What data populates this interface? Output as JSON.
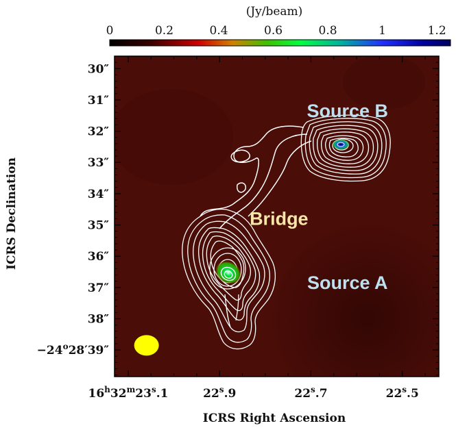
{
  "chart_data": {
    "type": "heatmap",
    "colorbar": {
      "label": "(Jy/beam)",
      "ticks": [
        0,
        0.2,
        0.4,
        0.6,
        0.8,
        1,
        1.2
      ],
      "tick_labels": [
        "0",
        "0.2",
        "0.4",
        "0.6",
        "0.8",
        "1",
        "1.2"
      ],
      "range": [
        0,
        1.25
      ],
      "colormap": "black-red-green-blue"
    },
    "xlabel": "ICRS Right Ascension",
    "ylabel": "ICRS Declination",
    "x_ticks": [
      {
        "value": 23.1,
        "label_parts": [
          "16",
          "h",
          "32",
          "m",
          "23",
          "s",
          ".1"
        ]
      },
      {
        "value": 22.9,
        "label_parts": [
          "22",
          "s",
          ".9"
        ]
      },
      {
        "value": 22.7,
        "label_parts": [
          "22",
          "s",
          ".7"
        ]
      },
      {
        "value": 22.5,
        "label_parts": [
          "22",
          "s",
          ".5"
        ]
      }
    ],
    "xlim": [
      23.13,
      22.42
    ],
    "y_ticks": [
      {
        "value": 30,
        "label": "30″"
      },
      {
        "value": 31,
        "label": "31″"
      },
      {
        "value": 32,
        "label": "32″"
      },
      {
        "value": 33,
        "label": "33″"
      },
      {
        "value": 34,
        "label": "34″"
      },
      {
        "value": 35,
        "label": "35″"
      },
      {
        "value": 36,
        "label": "36″"
      },
      {
        "value": 37,
        "label": "37″"
      },
      {
        "value": 38,
        "label": "38″"
      },
      {
        "value": 39,
        "label_parts": [
          "−24",
          "o",
          "28′39″"
        ]
      }
    ],
    "ylim": [
      39.85,
      29.6
    ],
    "annotations": [
      {
        "text": "Source B",
        "x": 22.62,
        "y": 31.35,
        "color": "#bfe0ef"
      },
      {
        "text": "Bridge",
        "x": 22.77,
        "y": 34.8,
        "color": "#f8e6a8"
      },
      {
        "text": "Source A",
        "x": 22.62,
        "y": 36.85,
        "color": "#bfe0ef"
      }
    ],
    "sources": [
      {
        "name": "Source A",
        "x": 22.88,
        "y": 36.6,
        "peak": 0.62
      },
      {
        "name": "Source B",
        "x": 22.62,
        "y": 32.65,
        "peak": 1.2
      }
    ],
    "beam": {
      "x": 23.06,
      "y": 38.85,
      "color": "#ffff00"
    },
    "background_color": "#4a0d08",
    "contour_color": "#ffffff"
  }
}
